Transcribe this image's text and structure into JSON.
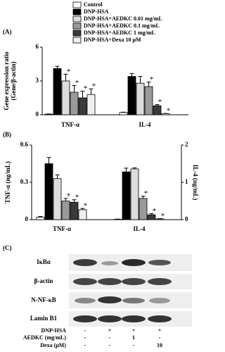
{
  "legend": null,
  "chart_data": [
    {
      "type": "bar",
      "panel_label": "(A)",
      "ylabel": [
        "Gene expression ratio",
        "(Gene/β-actin)"
      ],
      "categories": [
        "TNF-α",
        "IL-4"
      ],
      "ylim": [
        0,
        6
      ],
      "yticks": [
        0,
        3,
        6
      ],
      "series": [
        {
          "name": "Control",
          "color": "#ffffff",
          "values": [
            0.05,
            0.2
          ],
          "errors": [
            0.02,
            0.03
          ],
          "annotations": [
            null,
            null
          ]
        },
        {
          "name": "DNP-HSA",
          "color": "#000000",
          "values": [
            4.1,
            3.4
          ],
          "errors": [
            0.2,
            0.25
          ],
          "annotations": [
            null,
            null
          ]
        },
        {
          "name": "DNP-HSA+AEDKC 0.01 mg/mL",
          "color": "#dcdcdc",
          "values": [
            3.0,
            2.8
          ],
          "errors": [
            0.6,
            0.6
          ],
          "annotations": [
            "*",
            null
          ]
        },
        {
          "name": "DNP-HSA+AEDKC 0.1 mg/mL",
          "color": "#9a9a9a",
          "values": [
            2.0,
            2.5
          ],
          "errors": [
            0.6,
            0.4
          ],
          "annotations": [
            "*",
            "*"
          ]
        },
        {
          "name": "DNP-HSA+AEDKC 1 mg/mL",
          "color": "#3a3a3a",
          "values": [
            1.5,
            0.8
          ],
          "errors": [
            0.6,
            0.1
          ],
          "annotations": [
            "*",
            "*"
          ]
        },
        {
          "name": "DNP-HSA+Dexa 10 μM",
          "color": "#efefef",
          "values": [
            1.8,
            0.1
          ],
          "errors": [
            0.5,
            0.02
          ],
          "annotations": [
            "*",
            "*"
          ]
        }
      ]
    },
    {
      "type": "bar",
      "panel_label": "(B)",
      "ylabel": "TNF-α (ng/mL)",
      "y2label": "IL-4 (ng/mL)",
      "categories": [
        "TNF-α",
        "IL-4"
      ],
      "category_axes": [
        "y",
        "y2"
      ],
      "ylim": [
        0,
        0.6
      ],
      "yticks": [
        0,
        0.3,
        0.6
      ],
      "y2lim": [
        0,
        2
      ],
      "y2ticks": [
        0,
        1,
        2
      ],
      "series": [
        {
          "color": "#ffffff",
          "values": [
            0.02,
            0.01
          ],
          "errors": [
            0.005,
            0.005
          ],
          "annotations": [
            null,
            null
          ]
        },
        {
          "color": "#000000",
          "values": [
            0.45,
            1.28
          ],
          "errors": [
            0.05,
            0.1
          ],
          "annotations": [
            null,
            null
          ]
        },
        {
          "color": "#dcdcdc",
          "values": [
            0.33,
            1.36
          ],
          "errors": [
            0.03,
            0.03
          ],
          "annotations": [
            null,
            null
          ]
        },
        {
          "color": "#9a9a9a",
          "values": [
            0.15,
            0.57
          ],
          "errors": [
            0.02,
            0.06
          ],
          "annotations": [
            "*",
            "*"
          ]
        },
        {
          "color": "#3a3a3a",
          "values": [
            0.14,
            0.13
          ],
          "errors": [
            0.02,
            0.03
          ],
          "annotations": [
            "*",
            "*"
          ]
        },
        {
          "color": "#efefef",
          "values": [
            0.08,
            0.02
          ],
          "errors": [
            0.01,
            0.01
          ],
          "annotations": [
            "*",
            "*"
          ]
        }
      ]
    }
  ],
  "blot": {
    "panel_label": "(C)",
    "rows": [
      "IκBα",
      "β-actin",
      "N-NF-κB",
      "Lamin B1"
    ],
    "conditions": [
      {
        "label": "DNP-HSA",
        "cells": [
          "-",
          "+",
          "+",
          "+"
        ]
      },
      {
        "label": "AEDKC (mg/mL)",
        "cells": [
          "-",
          "-",
          "1",
          "-"
        ]
      },
      {
        "label": "Dexa (μM)",
        "cells": [
          "-",
          "-",
          "-",
          "10"
        ]
      }
    ]
  }
}
